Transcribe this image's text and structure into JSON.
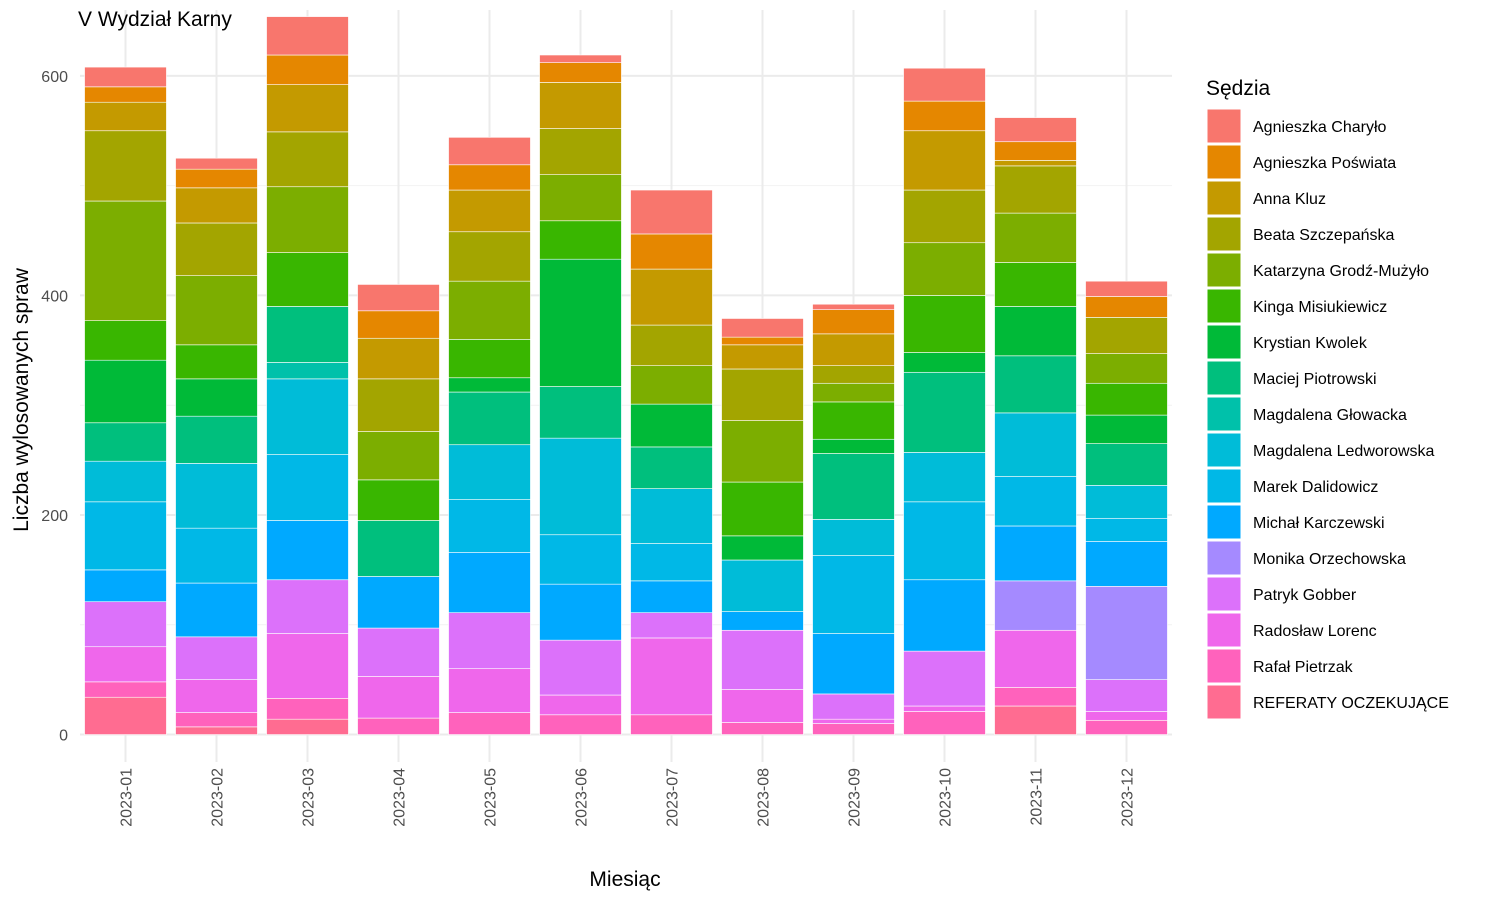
{
  "chart_data": {
    "type": "bar",
    "stacked": true,
    "title": "V Wydział Karny",
    "xlabel": "Miesiąc",
    "ylabel": "Liczba wylosowanych spraw",
    "ylim": [
      -25,
      660
    ],
    "yticks": [
      0,
      200,
      400,
      600
    ],
    "grid": true,
    "legend_title": "Sędzia",
    "legend_position": "right",
    "categories": [
      "2023-01",
      "2023-02",
      "2023-03",
      "2023-04",
      "2023-05",
      "2023-06",
      "2023-07",
      "2023-08",
      "2023-09",
      "2023-10",
      "2023-11",
      "2023-12"
    ],
    "series": [
      {
        "name": "REFERATY OCZEKUJĄCE",
        "color": "#FF6C91",
        "values": [
          34,
          7,
          14,
          0,
          0,
          0,
          0,
          0,
          0,
          0,
          26,
          0
        ]
      },
      {
        "name": "Rafał Pietrzak",
        "color": "#FF62BC",
        "values": [
          14,
          13,
          19,
          15,
          20,
          18,
          18,
          11,
          10,
          21,
          17,
          13
        ]
      },
      {
        "name": "Radosław Lorenc",
        "color": "#EF67EB",
        "values": [
          32,
          30,
          59,
          38,
          40,
          18,
          70,
          30,
          4,
          5,
          52,
          8
        ]
      },
      {
        "name": "Patryk Gobber",
        "color": "#DC71FA",
        "values": [
          41,
          39,
          49,
          44,
          51,
          50,
          23,
          54,
          23,
          50,
          0,
          29
        ]
      },
      {
        "name": "Monika Orzechowska",
        "color": "#A58AFF",
        "values": [
          0,
          0,
          0,
          0,
          0,
          0,
          0,
          0,
          0,
          0,
          45,
          85
        ]
      },
      {
        "name": "Michał Karczewski",
        "color": "#00A9FF",
        "values": [
          29,
          49,
          54,
          47,
          55,
          51,
          29,
          17,
          55,
          65,
          50,
          41
        ]
      },
      {
        "name": "Marek Dalidowicz",
        "color": "#00B8E7",
        "values": [
          62,
          50,
          60,
          0,
          48,
          45,
          34,
          0,
          71,
          71,
          45,
          21
        ]
      },
      {
        "name": "Magdalena Ledworowska",
        "color": "#00BCD8",
        "values": [
          37,
          59,
          69,
          0,
          50,
          88,
          50,
          47,
          33,
          45,
          58,
          30
        ]
      },
      {
        "name": "Magdalena Głowacka",
        "color": "#00C1AA",
        "values": [
          0,
          0,
          15,
          0,
          0,
          0,
          0,
          0,
          0,
          0,
          0,
          0
        ]
      },
      {
        "name": "Maciej Piotrowski",
        "color": "#00BF7D",
        "values": [
          35,
          43,
          51,
          51,
          48,
          47,
          38,
          0,
          60,
          73,
          52,
          38
        ]
      },
      {
        "name": "Krystian Kwolek",
        "color": "#00BA38",
        "values": [
          57,
          34,
          0,
          0,
          13,
          116,
          39,
          22,
          13,
          18,
          45,
          26
        ]
      },
      {
        "name": "Kinga Misiukiewicz",
        "color": "#39B600",
        "values": [
          36,
          31,
          49,
          37,
          35,
          35,
          0,
          49,
          34,
          52,
          40,
          29
        ]
      },
      {
        "name": "Katarzyna Grodź-Mużyło",
        "color": "#7CAE00",
        "values": [
          109,
          63,
          60,
          44,
          53,
          42,
          35,
          56,
          17,
          48,
          45,
          27
        ]
      },
      {
        "name": "Beata Szczepańska",
        "color": "#A3A500",
        "values": [
          64,
          48,
          50,
          48,
          45,
          42,
          37,
          47,
          16,
          48,
          43,
          33
        ]
      },
      {
        "name": "Anna Kluz",
        "color": "#C49A00",
        "values": [
          26,
          32,
          43,
          37,
          38,
          42,
          51,
          22,
          29,
          54,
          5,
          0
        ]
      },
      {
        "name": "Agnieszka Poświata",
        "color": "#E58700",
        "values": [
          14,
          17,
          27,
          25,
          23,
          18,
          32,
          7,
          22,
          27,
          17,
          19
        ]
      },
      {
        "name": "Agnieszka Charyło",
        "color": "#F8766D",
        "values": [
          18,
          10,
          35,
          24,
          25,
          7,
          40,
          17,
          5,
          30,
          22,
          14
        ]
      }
    ]
  }
}
